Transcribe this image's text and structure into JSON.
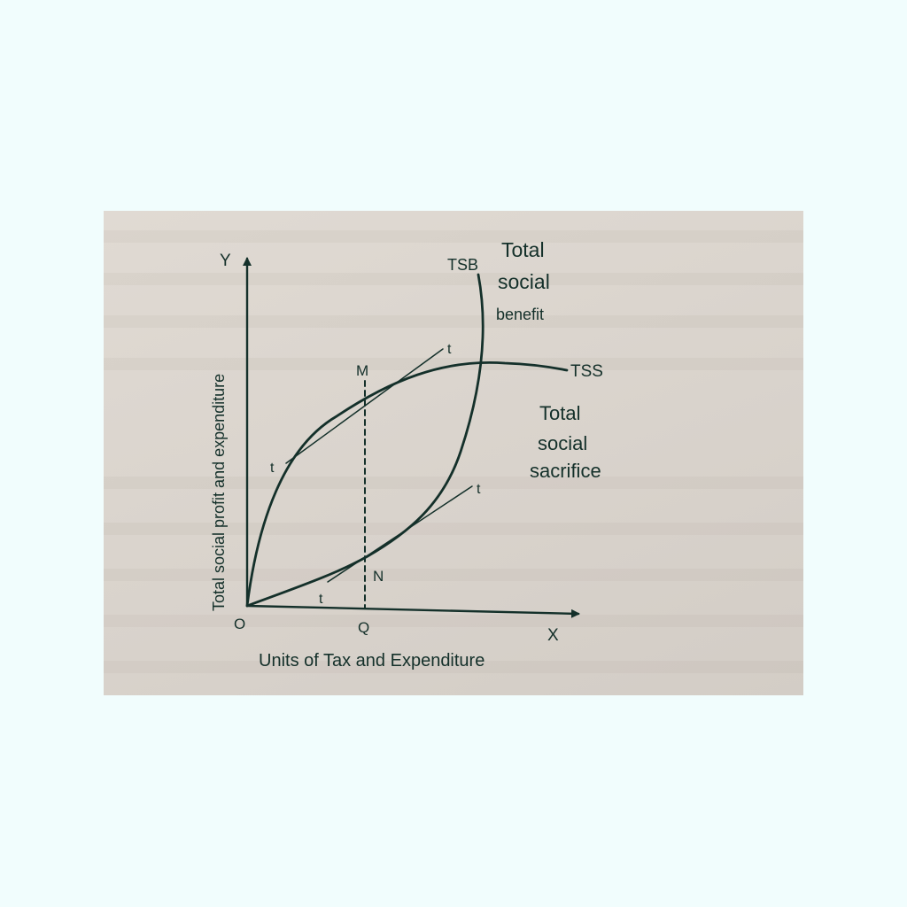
{
  "diagram": {
    "axis_y_label": "Total social profit and expenditure",
    "axis_x_label": "Units of Tax and Expenditure",
    "y_letter": "Y",
    "x_letter": "X",
    "origin": "O",
    "point_q": "Q",
    "point_m": "M",
    "point_n": "N",
    "tsb": {
      "abbr": "TSB",
      "line1": "Total",
      "line2": "social",
      "line3": "benefit"
    },
    "tss": {
      "abbr": "TSS",
      "line1": "Total",
      "line2": "social",
      "line3": "sacrifice"
    },
    "tangent_label": "t",
    "colors": {
      "ink": "#14302a",
      "paper": "#dcd6cf",
      "backdrop": "#f1fdfd"
    }
  }
}
